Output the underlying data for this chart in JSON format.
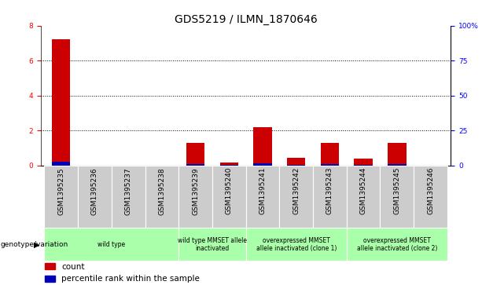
{
  "title": "GDS5219 / ILMN_1870646",
  "samples": [
    "GSM1395235",
    "GSM1395236",
    "GSM1395237",
    "GSM1395238",
    "GSM1395239",
    "GSM1395240",
    "GSM1395241",
    "GSM1395242",
    "GSM1395243",
    "GSM1395244",
    "GSM1395245",
    "GSM1395246"
  ],
  "count_values": [
    7.2,
    0.0,
    0.0,
    0.0,
    1.3,
    0.15,
    2.2,
    0.45,
    1.3,
    0.4,
    1.3,
    0.0
  ],
  "percentile_values": [
    0.2,
    0.0,
    0.0,
    0.0,
    0.06,
    0.012,
    0.12,
    0.024,
    0.06,
    0.042,
    0.066,
    0.0
  ],
  "ylim_left": [
    0,
    8
  ],
  "ylim_right": [
    0,
    100
  ],
  "yticks_left": [
    0,
    2,
    4,
    6,
    8
  ],
  "yticks_right": [
    0,
    25,
    50,
    75,
    100
  ],
  "ytick_labels_right": [
    "0",
    "25",
    "50",
    "75",
    "100%"
  ],
  "count_color": "#cc0000",
  "percentile_color": "#0000bb",
  "bar_width": 0.55,
  "group_spans": [
    [
      0,
      3,
      "wild type"
    ],
    [
      4,
      5,
      "wild type MMSET allele\ninactivated"
    ],
    [
      6,
      8,
      "overexpressed MMSET\nallele inactivated (clone 1)"
    ],
    [
      9,
      11,
      "overexpressed MMSET\nallele inactivated (clone 2)"
    ]
  ],
  "xlabel_bottom": "genotype/variation",
  "tick_bg_color": "#cccccc",
  "green_color": "#aaffaa",
  "legend_count_label": "count",
  "legend_percentile_label": "percentile rank within the sample",
  "title_fontsize": 10,
  "tick_fontsize": 6.5,
  "legend_fontsize": 7.5
}
